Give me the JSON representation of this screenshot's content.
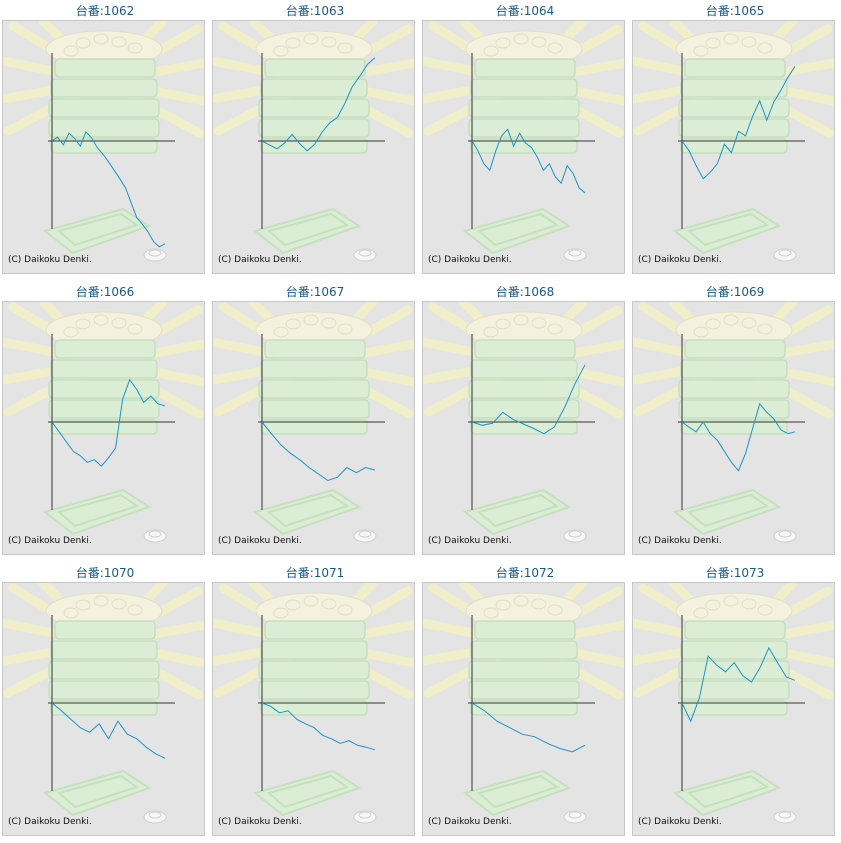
{
  "copyright": "(C) Daikoku Denki.",
  "colors": {
    "line": "#1a95c8",
    "axis": "#333333",
    "panel": "#e4e4e4",
    "title": "#1a5a8a"
  },
  "chart_data": [
    {
      "type": "line",
      "title": "台番:1062",
      "y": [
        0,
        6,
        -6,
        12,
        4,
        -8,
        14,
        5,
        -10,
        -20,
        -32,
        -45,
        -58,
        -72,
        -95,
        -118,
        -128,
        -140,
        -155,
        -163,
        -158
      ]
    },
    {
      "type": "line",
      "title": "台番:1063",
      "y": [
        0,
        -6,
        -12,
        -3,
        10,
        -4,
        -15,
        -5,
        14,
        28,
        36,
        58,
        84,
        100,
        118,
        128
      ]
    },
    {
      "type": "line",
      "title": "台番:1064",
      "y": [
        0,
        -15,
        -35,
        -45,
        -15,
        8,
        18,
        -8,
        12,
        -3,
        -10,
        -25,
        -45,
        -35,
        -55,
        -65,
        -38,
        -50,
        -72,
        -80
      ]
    },
    {
      "type": "line",
      "title": "台番:1065",
      "y": [
        0,
        -15,
        -38,
        -58,
        -48,
        -35,
        -5,
        -18,
        15,
        8,
        38,
        62,
        32,
        60,
        78,
        98,
        115
      ]
    },
    {
      "type": "line",
      "title": "台番:1066",
      "y": [
        0,
        -15,
        -30,
        -45,
        -52,
        -62,
        -58,
        -68,
        -55,
        -40,
        35,
        65,
        50,
        30,
        40,
        28,
        25
      ]
    },
    {
      "type": "line",
      "title": "台番:1067",
      "y": [
        0,
        -18,
        -35,
        -48,
        -58,
        -70,
        -80,
        -90,
        -85,
        -70,
        -78,
        -70,
        -74
      ]
    },
    {
      "type": "line",
      "title": "台番:1068",
      "y": [
        0,
        -5,
        -2,
        15,
        4,
        -3,
        -10,
        -18,
        -8,
        22,
        58,
        88
      ]
    },
    {
      "type": "line",
      "title": "台番:1069",
      "y": [
        0,
        -8,
        -15,
        0,
        -18,
        -28,
        -45,
        -62,
        -75,
        -48,
        -10,
        28,
        15,
        5,
        -12,
        -18,
        -15
      ]
    },
    {
      "type": "line",
      "title": "台番:1070",
      "y": [
        0,
        -12,
        -25,
        -38,
        -45,
        -32,
        -55,
        -28,
        -48,
        -55,
        -68,
        -78,
        -85
      ]
    },
    {
      "type": "line",
      "title": "台番:1071",
      "y": [
        0,
        -5,
        -15,
        -12,
        -25,
        -32,
        -38,
        -50,
        -55,
        -62,
        -58,
        -65,
        -68,
        -72
      ]
    },
    {
      "type": "line",
      "title": "台番:1072",
      "y": [
        0,
        -12,
        -28,
        -38,
        -48,
        -52,
        -62,
        -70,
        -75,
        -65
      ]
    },
    {
      "type": "line",
      "title": "台番:1073",
      "y": [
        0,
        -28,
        8,
        72,
        58,
        48,
        62,
        42,
        32,
        55,
        85,
        62,
        40,
        35
      ]
    }
  ]
}
